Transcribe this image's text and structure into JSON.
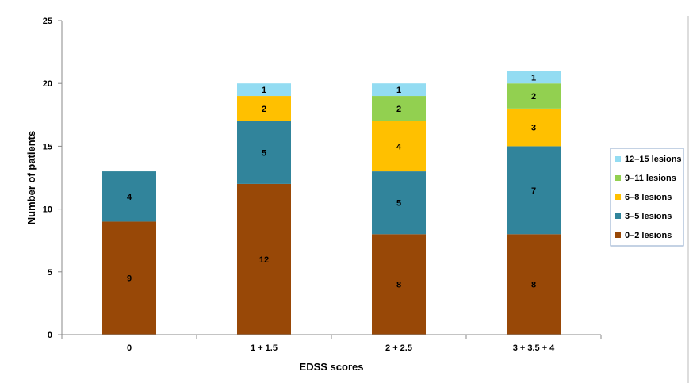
{
  "chart_data": {
    "type": "bar",
    "stacked": true,
    "categories": [
      "0",
      "1 + 1.5",
      "2 + 2.5",
      "3 + 3.5 + 4"
    ],
    "series": [
      {
        "name": "0–2 lesions",
        "values": [
          9,
          12,
          8,
          8
        ],
        "color": "#984807"
      },
      {
        "name": "3–5 lesions",
        "values": [
          4,
          5,
          5,
          7
        ],
        "color": "#31849B"
      },
      {
        "name": "6–8 lesions",
        "values": [
          0,
          2,
          4,
          3
        ],
        "color": "#FFC000"
      },
      {
        "name": "9–11 lesions",
        "values": [
          0,
          0,
          2,
          2
        ],
        "color": "#92D050"
      },
      {
        "name": "12–15 lesions",
        "values": [
          0,
          1,
          1,
          1
        ],
        "color": "#93DCF2"
      }
    ],
    "xlabel": "EDSS scores",
    "ylabel": "Number of patients",
    "ylim": [
      0,
      25
    ],
    "yticks": [
      "0",
      "5",
      "10",
      "15",
      "20",
      "25"
    ],
    "grid": false,
    "legend_position": "right"
  }
}
